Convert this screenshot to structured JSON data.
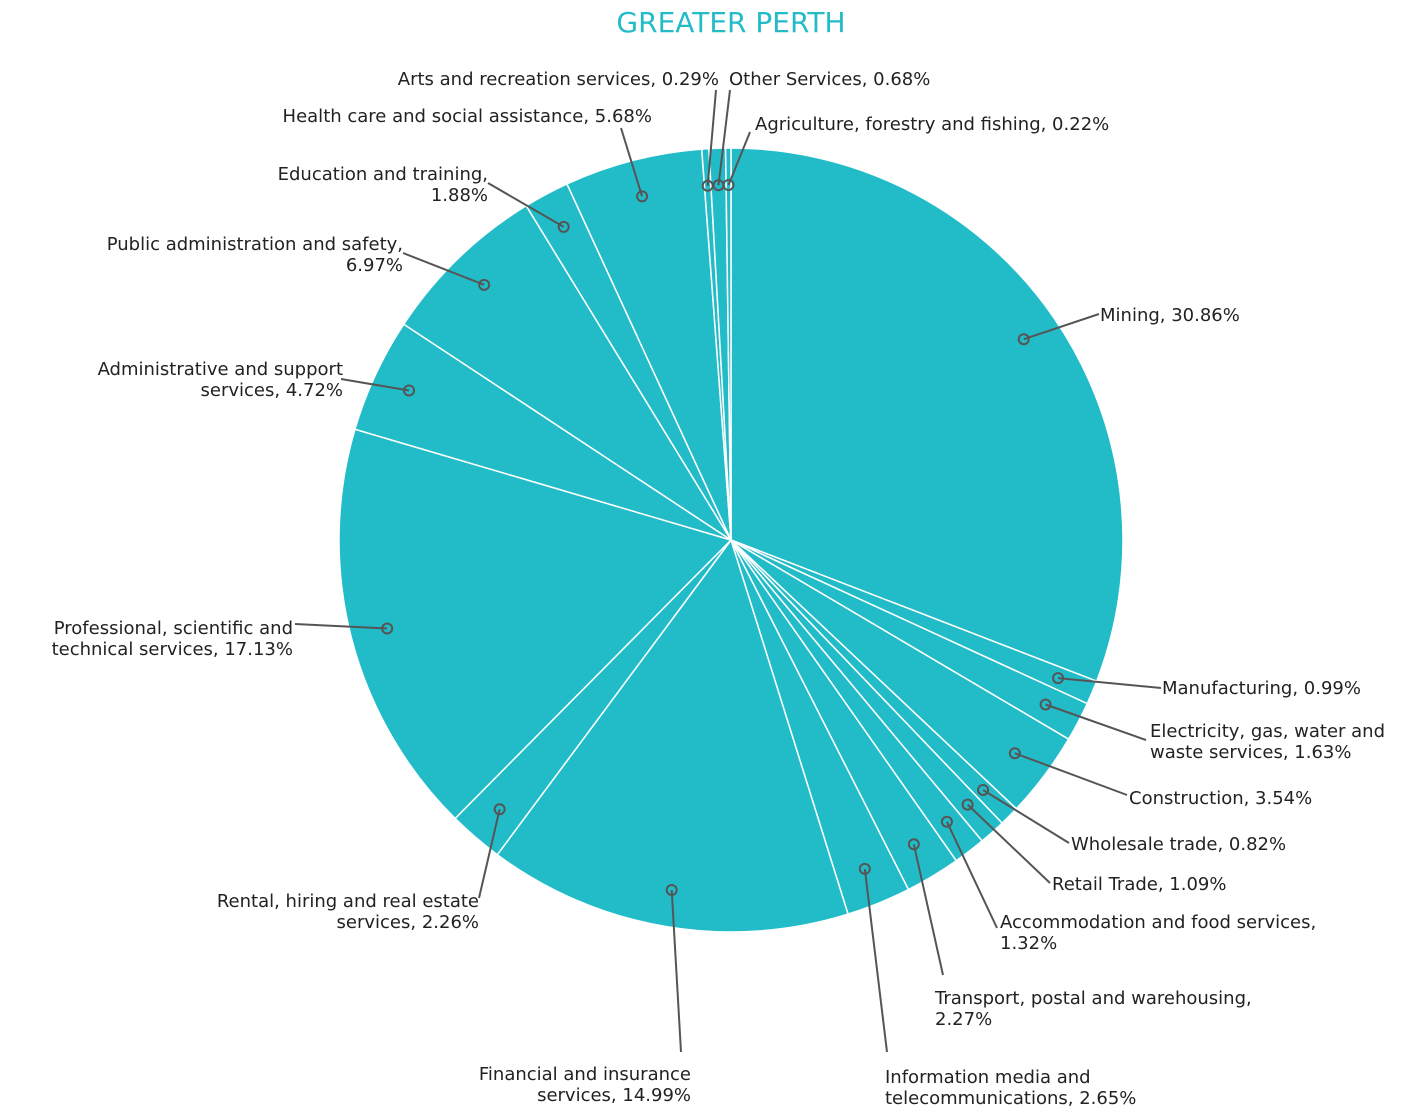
{
  "chart_data": {
    "type": "pie",
    "title": "GREATER PERTH",
    "color": "#22bcc9",
    "values": [
      30.86,
      0.99,
      1.63,
      3.54,
      0.82,
      1.09,
      1.32,
      2.27,
      2.65,
      14.99,
      2.26,
      17.13,
      4.72,
      6.97,
      1.88,
      5.68,
      0.29,
      0.68,
      0.22
    ],
    "value_labels": [
      "Mining, 30.86%",
      "Manufacturing, 0.99%",
      "Electricity, gas, water and\nwaste services, 1.63%",
      "Construction, 3.54%",
      "Wholesale trade, 0.82%",
      "Retail Trade, 1.09%",
      "Accommodation and food services,\n1.32%",
      "Transport, postal and warehousing,\n2.27%",
      "Information media and\ntelecommunications, 2.65%",
      "Financial and insurance\nservices, 14.99%",
      "Rental, hiring and real estate\nservices, 2.26%",
      "Professional, scientific and\ntechnical services, 17.13%",
      "Administrative and  support\nservices, 4.72%",
      "Public administration and safety,\n6.97%",
      "Education and training,\n1.88%",
      "Health care and social assistance, 5.68%",
      "Arts and recreation services, 0.29%",
      "Other Services, 0.68%",
      "Agriculture, forestry and fishing, 0.22%"
    ]
  }
}
